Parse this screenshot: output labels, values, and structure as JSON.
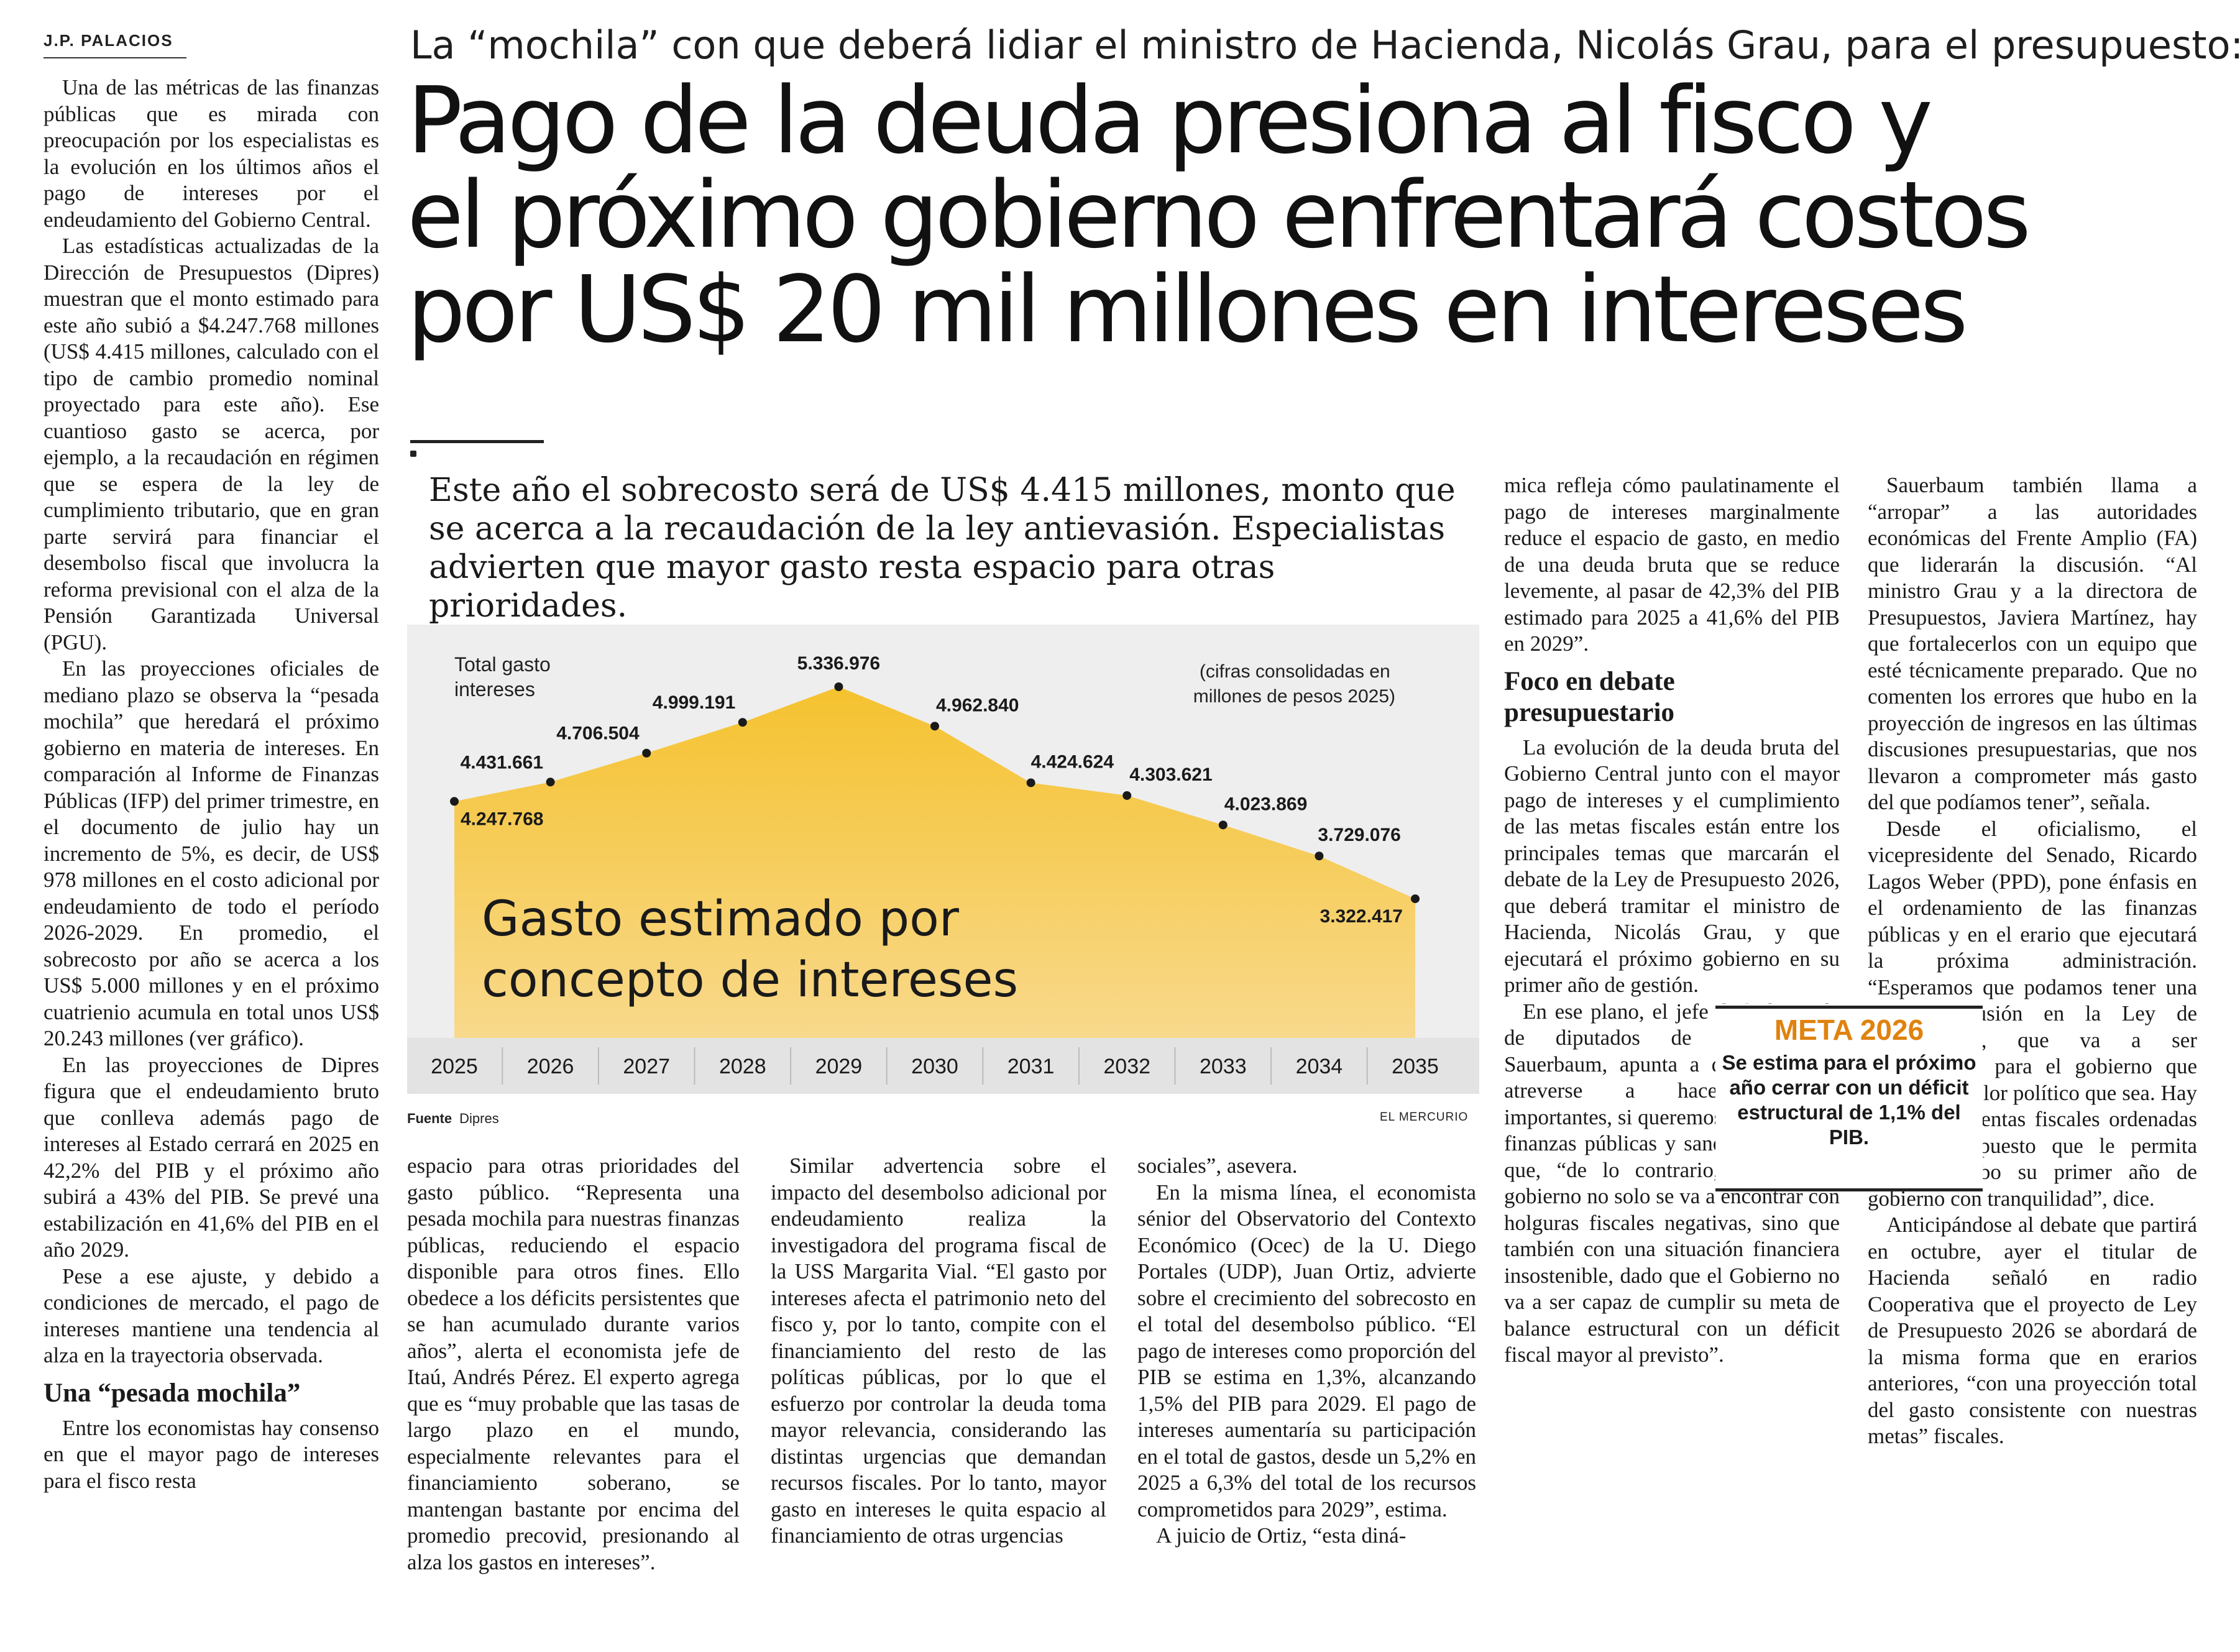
{
  "byline": "J.P. PALACIOS",
  "kicker": "La “mochila” con que deberá lidiar el ministro de Hacienda, Nicolás Grau, para el presupuesto:",
  "headline": [
    "Pago de la deuda presiona al fisco y",
    "el próximo gobierno enfrentará costos",
    "por US$ 20 mil millones en intereses"
  ],
  "deck": "Este año el sobrecosto será de US$ 4.415 millones, monto que se acerca a la recaudación de la ley antievasión. Especialistas advierten que mayor gasto resta espacio para otras prioridades.",
  "col1": [
    "Una de las métricas de las finanzas públicas que es mirada con preocupación por los especialistas es la evolución en los últimos años el pago de intereses por el endeudamiento del Gobierno Central.",
    "Las estadísticas actualizadas de la Dirección de Presupuestos (Dipres) muestran que el monto estimado para este año subió a $4.247.768 millones (US$ 4.415 millones, calculado con el tipo de cambio promedio nominal proyectado para este año). Ese cuantioso gasto se acerca, por ejemplo, a la recaudación en régimen que se espera de la ley de cumplimiento tributario, que en gran parte servirá para financiar el desembolso fiscal que involucra la reforma previsional con el alza de la Pensión Garantizada Universal (PGU).",
    "En las proyecciones oficiales de mediano plazo se observa la “pesada mochila” que heredará el próximo gobierno en materia de intereses. En comparación al Informe de Finanzas Públicas (IFP) del primer trimestre, en el documento de julio hay un incremento de 5%, es decir, de US$ 978 millones en el costo adicional por endeudamiento de todo el período 2026-2029. En promedio, el sobrecosto por año se acerca a los US$ 5.000 millones y en el próximo cuatrienio acumula en total unos US$ 20.243 millones (ver gráfico).",
    "En las proyecciones de Dipres figura que el endeudamiento bruto que conlleva además pago de intereses al Estado cerrará en 2025 en 42,2% del PIB y el próximo año subirá a 43% del PIB. Se prevé una estabilización en 41,6% del PIB en el año 2029.",
    "Pese a ese ajuste, y debido a condiciones de mercado, el pago de intereses mantiene una tendencia al alza en la trayectoria observada."
  ],
  "col1_subhead": "Una “pesada mochila”",
  "col1_tail": "Entre los economistas hay consenso en que el mayor pago de intereses para el fisco resta",
  "col2": [
    "espacio para otras prioridades del gasto público. “Representa una pesada mochila para nuestras finanzas públicas, reduciendo el espacio disponible para otros fines. Ello obedece a los déficits persistentes que se han acumulado durante varios años”, alerta el economista jefe de Itaú, Andrés Pérez. El experto agrega que es “muy probable que las tasas de largo plazo en el mundo, especialmente relevantes para el financiamiento soberano, se mantengan bastante por encima del promedio precovid, presionando al alza los gastos en intereses”."
  ],
  "col3": [
    "Similar advertencia sobre el impacto del desembolso adicional por endeudamiento realiza la investigadora del programa fiscal de la USS Margarita Vial. “El gasto por intereses afecta el patrimonio neto del fisco y, por lo tanto, compite con el financiamiento del resto de las políticas públicas, por lo que el esfuerzo por controlar la deuda toma mayor relevancia, considerando las distintas urgencias que demandan recursos fiscales. Por lo tanto, mayor gasto en intereses le quita espacio al financiamiento de otras urgencias"
  ],
  "col4": [
    "sociales”, asevera.",
    "En la misma línea, el economista sénior del Observatorio del Contexto Económico (Ocec) de la U. Diego Portales (UDP), Juan Ortiz, advierte sobre el crecimiento del sobrecosto en el total del desembolso público. “El pago de intereses como proporción del PIB se estima en 1,3%, alcanzando 1,5% del PIB para 2029. El pago de intereses aumentaría su participación en el total de gastos, desde un 5,2% en 2025 a 6,3% del total de los recursos comprometidos para 2029”, estima.",
    "A juicio de Ortiz, “esta diná-"
  ],
  "col5_top": "mica refleja cómo paulatinamente el pago de intereses marginalmente reduce el espacio de gasto, en medio de una deuda bruta que se reduce levemente, al pasar de 42,3% del PIB estimado para 2025 a 41,6% del PIB en 2029”.",
  "col5_subhead": "Foco en debate presupuestario",
  "col5": [
    "La evolución de la deuda bruta del Gobierno Central junto con el mayor pago de intereses y el cumplimiento de las metas fiscales están entre los principales temas que marcarán el debate de la Ley de Presupuesto 2026, que deberá tramitar el ministro de Hacienda, Nicolás Grau, y que ejecutará el próximo gobierno en su primer año de gestión.",
    "En ese plano, el jefe de la bancada de diputados de RN, Frank Sauerbaum, apunta a que “hay que atreverse a hacer cambios importantes, si queremos recuperar las finanzas públicas y sanearlas”. Alerta que, “de lo contrario, el próximo gobierno no solo se va a encontrar con holguras fiscales negativas, sino que también con una situación financiera insostenible, dado que el Gobierno no va a ser capaz de cumplir su meta de balance estructural con un déficit fiscal mayor al previsto”."
  ],
  "col6": [
    "Sauerbaum también llama a “arropar” a las autoridades económicas del Frente Amplio (FA) que liderarán la discusión. “Al ministro Grau y a la directora de Presupuestos, Javiera Martínez, hay que fortalecerlos con un equipo que esté técnicamente preparado. Que no comenten los errores que hubo en la proyección de ingresos en las últimas discusiones presupuestarias, que nos llevaron a comprometer más gasto del que podíamos tener”, señala.",
    "Desde el oficialismo, el vicepresidente del Senado, Ricardo Lagos Weber (PPD), pone énfasis en el ordenamiento de las finanzas públicas y en el erario que ejecutará la próxima administración. “Esperamos que podamos tener una buena discusión en la Ley de Presupuestos, que va a ser determinante para el gobierno que venga, del color político que sea. Hay que tener cuentas fiscales ordenadas y un presupuesto que le permita llevar a cabo su primer año de gobierno con tranquilidad”, dice.",
    "Anticipándose al debate que partirá en octubre, ayer el titular de Hacienda señaló en radio Cooperativa que el proyecto de Ley de Presupuesto 2026 se abordará de la misma forma que en erarios anteriores, “con una proyección total del gasto consistente con nuestras metas” fiscales."
  ],
  "meta": {
    "title": "META 2026",
    "text": "Se estima para el próximo año cerrar con un déficit estructural de 1,1% del PIB."
  },
  "chart_footer": {
    "source_label": "Fuente",
    "source": "Dipres",
    "credit": "EL MERCURIO"
  },
  "chart_data": {
    "type": "area",
    "title": "Gasto estimado por concepto de intereses",
    "series_label": "Total gasto intereses",
    "units_note": "(cifras consolidadas en millones de pesos 2025)",
    "categories": [
      "2025",
      "2026",
      "2027",
      "2028",
      "2029",
      "2030",
      "2031",
      "2032",
      "2033",
      "2034",
      "2035"
    ],
    "values": [
      4247768,
      4431661,
      4706504,
      4999191,
      5336976,
      4962840,
      4424624,
      4303621,
      4023869,
      3729076,
      3322417
    ],
    "value_labels": [
      "4.247.768",
      "4.431.661",
      "4.706.504",
      "4.999.191",
      "5.336.976",
      "4.962.840",
      "4.424.624",
      "4.303.621",
      "4.023.869",
      "3.729.076",
      "3.322.417"
    ],
    "colors": {
      "fill_top": "#f5c22f",
      "fill_bottom": "#f8d98c",
      "background": "#eeeeee",
      "axis_band": "#e3e3e3"
    }
  }
}
